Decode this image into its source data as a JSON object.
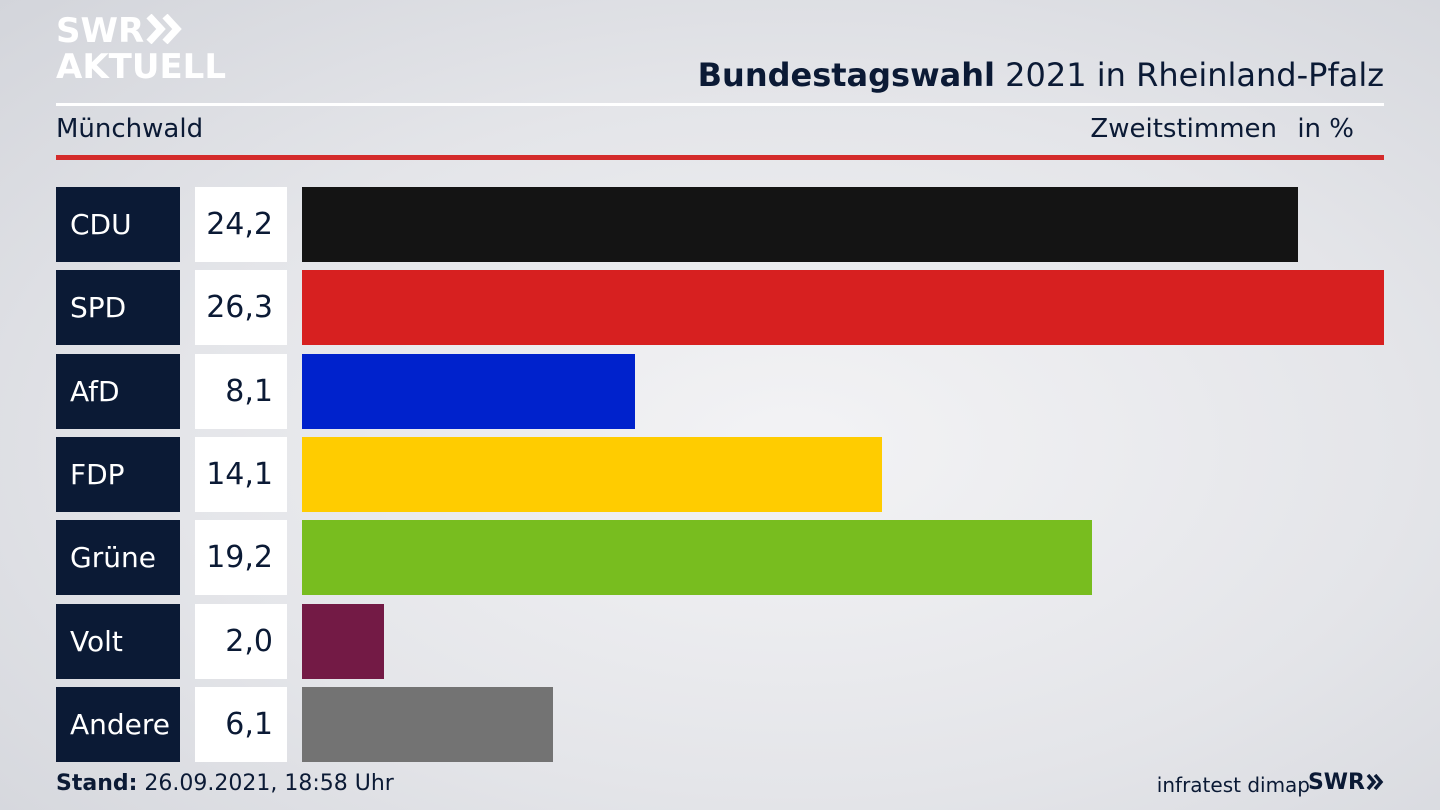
{
  "brand": {
    "line1": "SWR",
    "line2": "AKTUELL",
    "small": "SWR"
  },
  "header": {
    "title_bold": "Bundestagswahl",
    "title_rest": " 2021 in Rheinland-Pfalz",
    "district": "Münchwald",
    "metric": "Zweitstimmen",
    "unit": "in %"
  },
  "footer": {
    "stand_label": "Stand:",
    "stand_value": " 26.09.2021, 18:58 Uhr",
    "source": "infratest dimap"
  },
  "colors": {
    "accent_red": "#d42b2b",
    "navy": "#0b1a35"
  },
  "chart_data": {
    "type": "bar",
    "orientation": "horizontal",
    "categories": [
      "CDU",
      "SPD",
      "AfD",
      "FDP",
      "Grüne",
      "Volt",
      "Andere"
    ],
    "values": [
      24.2,
      26.3,
      8.1,
      14.1,
      19.2,
      2.0,
      6.1
    ],
    "value_labels": [
      "24,2",
      "26,3",
      "8,1",
      "14,1",
      "19,2",
      "2,0",
      "6,1"
    ],
    "colors": [
      "#141414",
      "#d72020",
      "#0022cc",
      "#ffcc00",
      "#78bd1f",
      "#731a45",
      "#737373"
    ],
    "xlim": [
      0,
      26.3
    ]
  }
}
